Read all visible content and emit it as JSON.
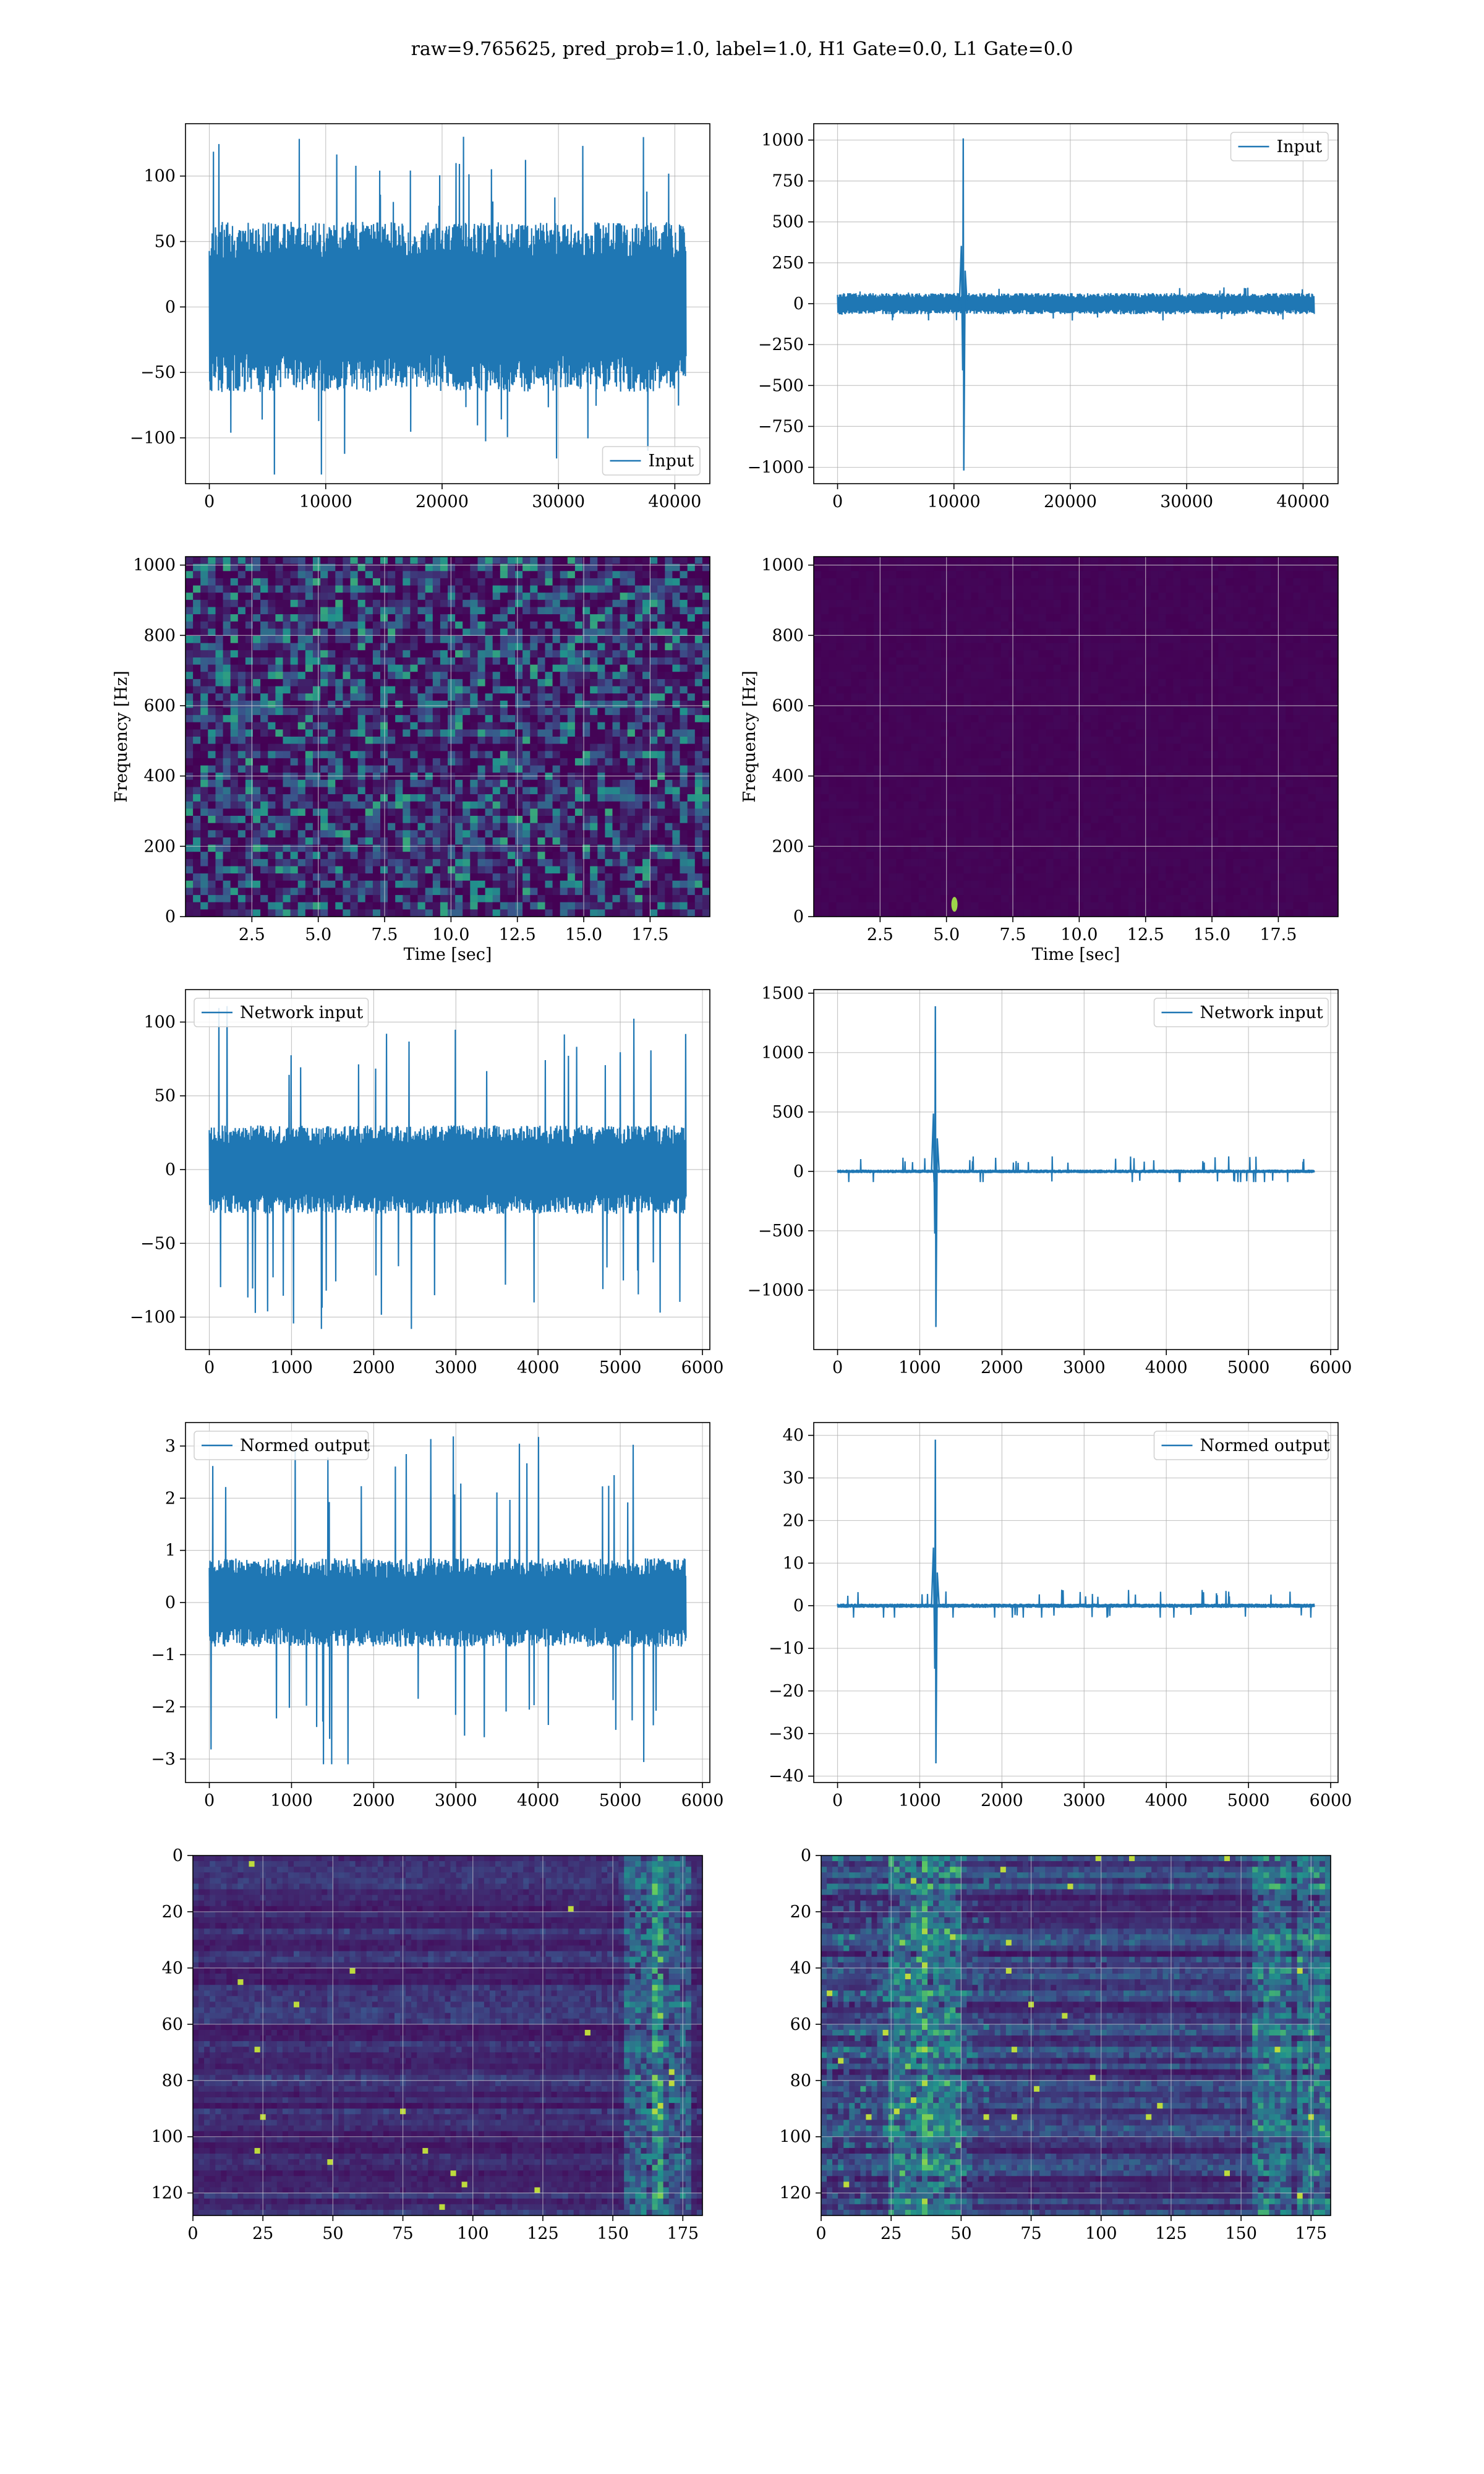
{
  "figure": {
    "suptitle": "raw=9.765625, pred_prob=1.0, label=1.0, H1 Gate=0.0, L1 Gate=0.0"
  },
  "colors": {
    "line": "#1f77b4",
    "grid": "#b0b0b0",
    "viridis_low": "#440154",
    "viridis_mid": "#21918c",
    "viridis_high": "#fde725"
  },
  "chart_data": [
    {
      "id": "h1-input",
      "type": "line",
      "kind": "wave",
      "x": [
        0,
        40960
      ],
      "xticks": [
        0,
        10000,
        20000,
        30000,
        40000
      ],
      "xlim": [
        -2048,
        43008
      ],
      "ylim": [
        -135,
        140
      ],
      "yticks": [
        -100,
        -50,
        0,
        50,
        100
      ],
      "envelope": 65,
      "spike_max": 132,
      "spike_min": -128,
      "series": [
        {
          "name": "Input"
        }
      ],
      "legend": "lower right",
      "grid": true
    },
    {
      "id": "l1-input",
      "type": "line",
      "kind": "wave",
      "x": [
        0,
        40960
      ],
      "xticks": [
        0,
        10000,
        20000,
        30000,
        40000
      ],
      "xlim": [
        -2048,
        43008
      ],
      "ylim": [
        -1100,
        1100
      ],
      "yticks": [
        -1000,
        -750,
        -500,
        -250,
        0,
        250,
        500,
        750,
        1000
      ],
      "envelope": 65,
      "spike_max": 105,
      "spike_min": -110,
      "event": {
        "x": 10800,
        "max": 1010,
        "min": -1020
      },
      "series": [
        {
          "name": "Input"
        }
      ],
      "legend": "upper right",
      "grid": true
    },
    {
      "id": "h1-spectrogram",
      "type": "heatmap",
      "kind": "spec",
      "xlabel": "Time [sec]",
      "ylabel": "Frequency [Hz]",
      "xlim": [
        0,
        19.75
      ],
      "ylim": [
        0,
        1024
      ],
      "xticks": [
        "2.5",
        "5.0",
        "7.5",
        "10.0",
        "12.5",
        "15.0",
        "17.5"
      ],
      "yticks": [
        0,
        200,
        400,
        600,
        800,
        1000
      ],
      "noise": "uniform",
      "grid": true
    },
    {
      "id": "l1-spectrogram",
      "type": "heatmap",
      "kind": "spec",
      "xlabel": "Time [sec]",
      "ylabel": "Frequency [Hz]",
      "xlim": [
        0,
        19.75
      ],
      "ylim": [
        0,
        1024
      ],
      "xticks": [
        "2.5",
        "5.0",
        "7.5",
        "10.0",
        "12.5",
        "15.0",
        "17.5"
      ],
      "yticks": [
        0,
        200,
        400,
        600,
        800,
        1000
      ],
      "noise": "dark",
      "blip": {
        "t": 5.3,
        "f": 35
      },
      "grid": true
    },
    {
      "id": "h1-network-input",
      "type": "line",
      "kind": "wave",
      "x": [
        0,
        5800
      ],
      "xticks": [
        0,
        1000,
        2000,
        3000,
        4000,
        5000,
        6000
      ],
      "xlim": [
        -290,
        6090
      ],
      "ylim": [
        -122,
        122
      ],
      "yticks": [
        -100,
        -50,
        0,
        50,
        100
      ],
      "envelope": 30,
      "spike_max": 113,
      "spike_min": -108,
      "series": [
        {
          "name": "Network input"
        }
      ],
      "legend": "upper left",
      "grid": true
    },
    {
      "id": "l1-network-input",
      "type": "line",
      "kind": "wave",
      "x": [
        0,
        5800
      ],
      "xticks": [
        0,
        1000,
        2000,
        3000,
        4000,
        5000,
        6000
      ],
      "xlim": [
        -290,
        6090
      ],
      "ylim": [
        -1500,
        1530
      ],
      "yticks": [
        -1000,
        -500,
        0,
        500,
        1000,
        1500
      ],
      "envelope": 15,
      "spike_max": 130,
      "spike_min": -90,
      "event": {
        "x": 1190,
        "max": 1390,
        "min": -1310
      },
      "series": [
        {
          "name": "Network input"
        }
      ],
      "legend": "upper right",
      "grid": true
    },
    {
      "id": "h1-normed-output",
      "type": "line",
      "kind": "wave",
      "x": [
        0,
        5800
      ],
      "xticks": [
        0,
        1000,
        2000,
        3000,
        4000,
        5000,
        6000
      ],
      "xlim": [
        -290,
        6090
      ],
      "ylim": [
        -3.45,
        3.45
      ],
      "yticks": [
        -3,
        -2,
        -1,
        0,
        1,
        2,
        3
      ],
      "envelope": 0.85,
      "spike_max": 3.3,
      "spike_min": -3.1,
      "series": [
        {
          "name": "Normed output"
        }
      ],
      "legend": "upper left",
      "grid": true
    },
    {
      "id": "l1-normed-output",
      "type": "line",
      "kind": "wave",
      "x": [
        0,
        5800
      ],
      "xticks": [
        0,
        1000,
        2000,
        3000,
        4000,
        5000,
        6000
      ],
      "xlim": [
        -290,
        6090
      ],
      "ylim": [
        -41.5,
        43
      ],
      "yticks": [
        -40,
        -30,
        -20,
        -10,
        0,
        10,
        20,
        30,
        40
      ],
      "envelope": 0.5,
      "spike_max": 3.8,
      "spike_min": -2.8,
      "event": {
        "x": 1190,
        "max": 39,
        "min": -37
      },
      "series": [
        {
          "name": "Normed output"
        }
      ],
      "legend": "upper right",
      "grid": true
    },
    {
      "id": "h1-features",
      "type": "heatmap",
      "kind": "feat",
      "xlim": [
        0,
        182
      ],
      "ylim": [
        128,
        0
      ],
      "xticks": [
        0,
        25,
        50,
        75,
        100,
        125,
        150,
        175
      ],
      "yticks": [
        0,
        20,
        40,
        60,
        80,
        100,
        120
      ],
      "hot_columns": [
        160,
        170
      ],
      "grid": true
    },
    {
      "id": "l1-features",
      "type": "heatmap",
      "kind": "feat",
      "xlim": [
        0,
        182
      ],
      "ylim": [
        128,
        0
      ],
      "xticks": [
        0,
        25,
        50,
        75,
        100,
        125,
        150,
        175
      ],
      "yticks": [
        0,
        20,
        40,
        60,
        80,
        100,
        120
      ],
      "hot_columns": [
        30,
        42,
        160,
        175
      ],
      "grid": true
    }
  ]
}
